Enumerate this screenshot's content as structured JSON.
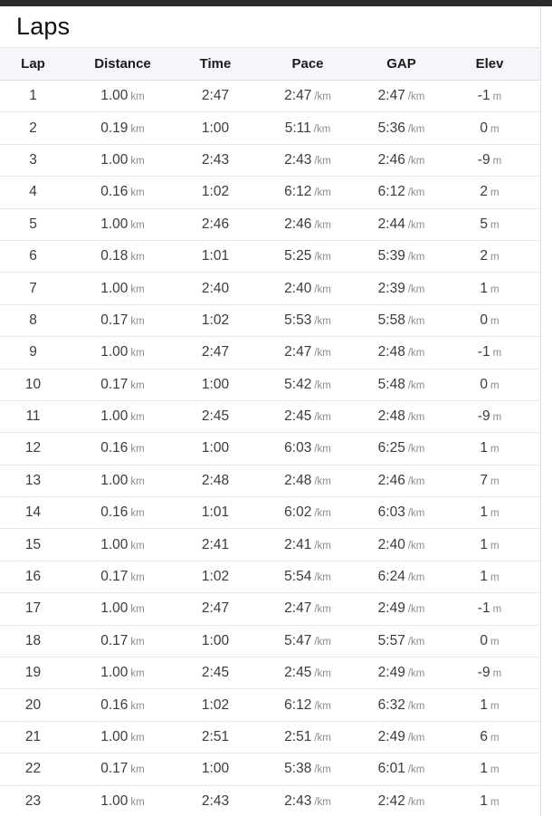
{
  "page": {
    "title": "Laps"
  },
  "colors": {
    "topbar": "#2c2c2c",
    "header_bg": "#f5f6fa",
    "header_text": "#1b1b1b",
    "title_text": "#101010",
    "value_text": "#3b3b3b",
    "unit_text": "#8c8c8c",
    "row_border": "#e9e9e9",
    "card_border": "#e0e0e0"
  },
  "table": {
    "columns": [
      {
        "key": "lap",
        "label": "Lap",
        "unit": ""
      },
      {
        "key": "distance",
        "label": "Distance",
        "unit": "km"
      },
      {
        "key": "time",
        "label": "Time",
        "unit": ""
      },
      {
        "key": "pace",
        "label": "Pace",
        "unit": "/km"
      },
      {
        "key": "gap",
        "label": "GAP",
        "unit": "/km"
      },
      {
        "key": "elev",
        "label": "Elev",
        "unit": "m"
      }
    ],
    "rows": [
      {
        "lap": "1",
        "distance": "1.00",
        "time": "2:47",
        "pace": "2:47",
        "gap": "2:47",
        "elev": "-1"
      },
      {
        "lap": "2",
        "distance": "0.19",
        "time": "1:00",
        "pace": "5:11",
        "gap": "5:36",
        "elev": "0"
      },
      {
        "lap": "3",
        "distance": "1.00",
        "time": "2:43",
        "pace": "2:43",
        "gap": "2:46",
        "elev": "-9"
      },
      {
        "lap": "4",
        "distance": "0.16",
        "time": "1:02",
        "pace": "6:12",
        "gap": "6:12",
        "elev": "2"
      },
      {
        "lap": "5",
        "distance": "1.00",
        "time": "2:46",
        "pace": "2:46",
        "gap": "2:44",
        "elev": "5"
      },
      {
        "lap": "6",
        "distance": "0.18",
        "time": "1:01",
        "pace": "5:25",
        "gap": "5:39",
        "elev": "2"
      },
      {
        "lap": "7",
        "distance": "1.00",
        "time": "2:40",
        "pace": "2:40",
        "gap": "2:39",
        "elev": "1"
      },
      {
        "lap": "8",
        "distance": "0.17",
        "time": "1:02",
        "pace": "5:53",
        "gap": "5:58",
        "elev": "0"
      },
      {
        "lap": "9",
        "distance": "1.00",
        "time": "2:47",
        "pace": "2:47",
        "gap": "2:48",
        "elev": "-1"
      },
      {
        "lap": "10",
        "distance": "0.17",
        "time": "1:00",
        "pace": "5:42",
        "gap": "5:48",
        "elev": "0"
      },
      {
        "lap": "11",
        "distance": "1.00",
        "time": "2:45",
        "pace": "2:45",
        "gap": "2:48",
        "elev": "-9"
      },
      {
        "lap": "12",
        "distance": "0.16",
        "time": "1:00",
        "pace": "6:03",
        "gap": "6:25",
        "elev": "1"
      },
      {
        "lap": "13",
        "distance": "1.00",
        "time": "2:48",
        "pace": "2:48",
        "gap": "2:46",
        "elev": "7"
      },
      {
        "lap": "14",
        "distance": "0.16",
        "time": "1:01",
        "pace": "6:02",
        "gap": "6:03",
        "elev": "1"
      },
      {
        "lap": "15",
        "distance": "1.00",
        "time": "2:41",
        "pace": "2:41",
        "gap": "2:40",
        "elev": "1"
      },
      {
        "lap": "16",
        "distance": "0.17",
        "time": "1:02",
        "pace": "5:54",
        "gap": "6:24",
        "elev": "1"
      },
      {
        "lap": "17",
        "distance": "1.00",
        "time": "2:47",
        "pace": "2:47",
        "gap": "2:49",
        "elev": "-1"
      },
      {
        "lap": "18",
        "distance": "0.17",
        "time": "1:00",
        "pace": "5:47",
        "gap": "5:57",
        "elev": "0"
      },
      {
        "lap": "19",
        "distance": "1.00",
        "time": "2:45",
        "pace": "2:45",
        "gap": "2:49",
        "elev": "-9"
      },
      {
        "lap": "20",
        "distance": "0.16",
        "time": "1:02",
        "pace": "6:12",
        "gap": "6:32",
        "elev": "1"
      },
      {
        "lap": "21",
        "distance": "1.00",
        "time": "2:51",
        "pace": "2:51",
        "gap": "2:49",
        "elev": "6"
      },
      {
        "lap": "22",
        "distance": "0.17",
        "time": "1:00",
        "pace": "5:38",
        "gap": "6:01",
        "elev": "1"
      },
      {
        "lap": "23",
        "distance": "1.00",
        "time": "2:43",
        "pace": "2:43",
        "gap": "2:42",
        "elev": "1"
      }
    ]
  }
}
